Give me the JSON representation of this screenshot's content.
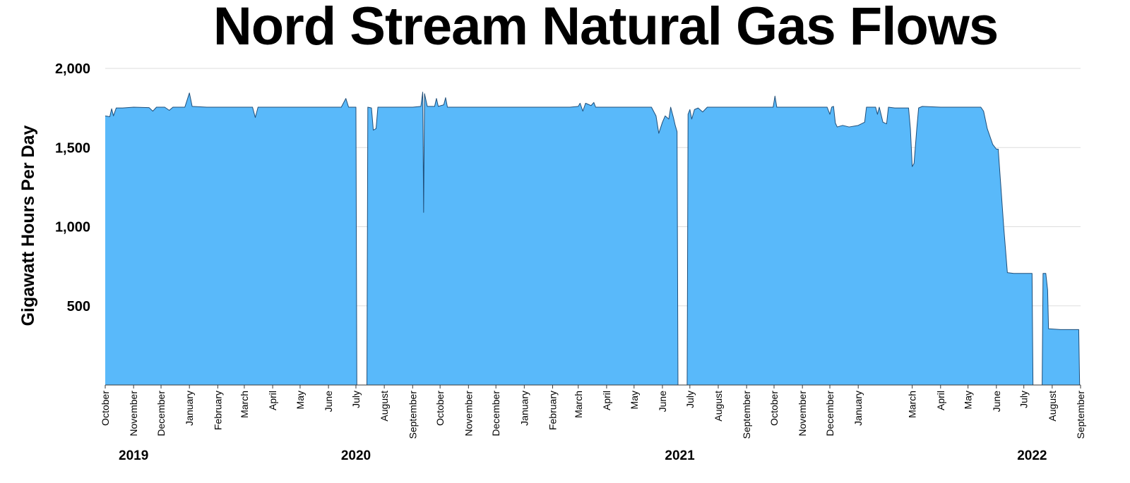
{
  "chart_data": {
    "type": "area",
    "title": "Nord Stream Natural Gas Flows",
    "xlabel": "",
    "ylabel": "Gigawatt Hours Per Day",
    "ylim": [
      0,
      2000
    ],
    "yticks": [
      {
        "value": 500,
        "label": "500"
      },
      {
        "value": 1000,
        "label": "1,000"
      },
      {
        "value": 1500,
        "label": "1,500"
      },
      {
        "value": 2000,
        "label": "2,000"
      }
    ],
    "grid": true,
    "legend": "none",
    "colors": {
      "fill": "#59B9FA",
      "line": "#1F4E79",
      "grid": "#DDDDDD"
    },
    "month_ticks": [
      {
        "date": "2019-10-01",
        "label": "October"
      },
      {
        "date": "2019-11-01",
        "label": "November"
      },
      {
        "date": "2019-12-01",
        "label": "December"
      },
      {
        "date": "2020-01-01",
        "label": "January"
      },
      {
        "date": "2020-02-01",
        "label": "February"
      },
      {
        "date": "2020-03-01",
        "label": "March"
      },
      {
        "date": "2020-04-01",
        "label": "April"
      },
      {
        "date": "2020-05-01",
        "label": "May"
      },
      {
        "date": "2020-06-01",
        "label": "June"
      },
      {
        "date": "2020-07-01",
        "label": "July"
      },
      {
        "date": "2020-08-01",
        "label": "August"
      },
      {
        "date": "2020-09-01",
        "label": "September"
      },
      {
        "date": "2020-10-01",
        "label": "October"
      },
      {
        "date": "2020-11-01",
        "label": "November"
      },
      {
        "date": "2020-12-01",
        "label": "December"
      },
      {
        "date": "2021-01-01",
        "label": "January"
      },
      {
        "date": "2021-02-01",
        "label": "February"
      },
      {
        "date": "2021-03-01",
        "label": "March"
      },
      {
        "date": "2021-04-01",
        "label": "April"
      },
      {
        "date": "2021-05-01",
        "label": "May"
      },
      {
        "date": "2021-06-01",
        "label": "June"
      },
      {
        "date": "2021-07-01",
        "label": "July"
      },
      {
        "date": "2021-08-01",
        "label": "August"
      },
      {
        "date": "2021-09-01",
        "label": "September"
      },
      {
        "date": "2021-10-01",
        "label": "October"
      },
      {
        "date": "2021-11-01",
        "label": "November"
      },
      {
        "date": "2021-12-01",
        "label": "December"
      },
      {
        "date": "2022-01-01",
        "label": "January"
      },
      {
        "date": "2022-03-01",
        "label": "March"
      },
      {
        "date": "2022-04-01",
        "label": "April"
      },
      {
        "date": "2022-05-01",
        "label": "May"
      },
      {
        "date": "2022-06-01",
        "label": "June"
      },
      {
        "date": "2022-07-01",
        "label": "July"
      },
      {
        "date": "2022-08-01",
        "label": "August"
      },
      {
        "date": "2022-09-01",
        "label": "September"
      }
    ],
    "year_labels": [
      {
        "date": "2019-11-01",
        "label": "2019"
      },
      {
        "date": "2020-07-01",
        "label": "2020"
      },
      {
        "date": "2021-06-20",
        "label": "2021"
      },
      {
        "date": "2022-07-10",
        "label": "2022"
      }
    ],
    "series": [
      {
        "segments": [
          [
            [
              "2019-10-01",
              1700
            ],
            [
              "2019-10-06",
              1695
            ],
            [
              "2019-10-08",
              1745
            ],
            [
              "2019-10-10",
              1700
            ],
            [
              "2019-10-13",
              1750
            ],
            [
              "2019-10-20",
              1750
            ],
            [
              "2019-11-01",
              1755
            ],
            [
              "2019-11-18",
              1752
            ],
            [
              "2019-11-22",
              1730
            ],
            [
              "2019-11-26",
              1755
            ],
            [
              "2019-12-05",
              1755
            ],
            [
              "2019-12-10",
              1735
            ],
            [
              "2019-12-14",
              1755
            ],
            [
              "2019-12-27",
              1755
            ],
            [
              "2020-01-01",
              1845
            ],
            [
              "2020-01-04",
              1760
            ],
            [
              "2020-01-20",
              1755
            ],
            [
              "2020-02-01",
              1755
            ],
            [
              "2020-03-10",
              1755
            ],
            [
              "2020-03-13",
              1690
            ],
            [
              "2020-03-16",
              1755
            ],
            [
              "2020-05-01",
              1755
            ],
            [
              "2020-06-15",
              1755
            ],
            [
              "2020-06-20",
              1810
            ],
            [
              "2020-06-23",
              1755
            ],
            [
              "2020-07-01",
              1755
            ],
            [
              "2020-07-02",
              0
            ]
          ],
          [
            [
              "2020-07-13",
              0
            ],
            [
              "2020-07-14",
              1755
            ],
            [
              "2020-07-18",
              1750
            ],
            [
              "2020-07-20",
              1610
            ],
            [
              "2020-07-23",
              1620
            ],
            [
              "2020-07-25",
              1755
            ],
            [
              "2020-08-20",
              1755
            ],
            [
              "2020-09-01",
              1755
            ],
            [
              "2020-09-10",
              1760
            ],
            [
              "2020-09-12",
              1850
            ],
            [
              "2020-09-13",
              1090
            ],
            [
              "2020-09-14",
              1840
            ],
            [
              "2020-09-17",
              1760
            ],
            [
              "2020-09-25",
              1760
            ],
            [
              "2020-09-27",
              1810
            ],
            [
              "2020-09-29",
              1760
            ],
            [
              "2020-10-05",
              1770
            ],
            [
              "2020-10-07",
              1815
            ],
            [
              "2020-10-09",
              1755
            ],
            [
              "2020-12-01",
              1755
            ],
            [
              "2021-01-15",
              1755
            ],
            [
              "2021-02-20",
              1755
            ],
            [
              "2021-03-01",
              1760
            ],
            [
              "2021-03-03",
              1780
            ],
            [
              "2021-03-06",
              1730
            ],
            [
              "2021-03-09",
              1780
            ],
            [
              "2021-03-15",
              1765
            ],
            [
              "2021-03-18",
              1785
            ],
            [
              "2021-03-20",
              1755
            ],
            [
              "2021-04-01",
              1755
            ],
            [
              "2021-05-20",
              1755
            ],
            [
              "2021-05-25",
              1700
            ],
            [
              "2021-05-28",
              1590
            ],
            [
              "2021-06-01",
              1660
            ],
            [
              "2021-06-04",
              1700
            ],
            [
              "2021-06-08",
              1680
            ],
            [
              "2021-06-10",
              1755
            ],
            [
              "2021-06-13",
              1690
            ],
            [
              "2021-06-15",
              1640
            ],
            [
              "2021-06-17",
              1600
            ],
            [
              "2021-06-18",
              0
            ]
          ],
          [
            [
              "2021-06-28",
              0
            ],
            [
              "2021-06-29",
              1710
            ],
            [
              "2021-07-01",
              1740
            ],
            [
              "2021-07-03",
              1680
            ],
            [
              "2021-07-06",
              1740
            ],
            [
              "2021-07-10",
              1750
            ],
            [
              "2021-07-15",
              1725
            ],
            [
              "2021-07-20",
              1755
            ],
            [
              "2021-08-01",
              1755
            ],
            [
              "2021-09-01",
              1755
            ],
            [
              "2021-09-30",
              1755
            ],
            [
              "2021-10-02",
              1825
            ],
            [
              "2021-10-04",
              1755
            ],
            [
              "2021-11-01",
              1755
            ],
            [
              "2021-11-28",
              1755
            ],
            [
              "2021-12-01",
              1710
            ],
            [
              "2021-12-03",
              1755
            ],
            [
              "2021-12-05",
              1760
            ],
            [
              "2021-12-07",
              1655
            ],
            [
              "2021-12-09",
              1630
            ],
            [
              "2021-12-15",
              1640
            ],
            [
              "2021-12-22",
              1630
            ],
            [
              "2022-01-01",
              1640
            ],
            [
              "2022-01-08",
              1660
            ],
            [
              "2022-01-10",
              1755
            ],
            [
              "2022-01-20",
              1755
            ],
            [
              "2022-01-22",
              1710
            ],
            [
              "2022-01-24",
              1755
            ],
            [
              "2022-01-28",
              1660
            ],
            [
              "2022-02-01",
              1650
            ],
            [
              "2022-02-03",
              1755
            ],
            [
              "2022-02-10",
              1750
            ],
            [
              "2022-02-25",
              1750
            ],
            [
              "2022-02-27",
              1620
            ],
            [
              "2022-03-01",
              1380
            ],
            [
              "2022-03-03",
              1400
            ],
            [
              "2022-03-06",
              1620
            ],
            [
              "2022-03-08",
              1750
            ],
            [
              "2022-03-12",
              1760
            ],
            [
              "2022-04-01",
              1755
            ],
            [
              "2022-05-15",
              1755
            ],
            [
              "2022-05-18",
              1730
            ],
            [
              "2022-05-22",
              1620
            ],
            [
              "2022-05-25",
              1570
            ],
            [
              "2022-05-28",
              1520
            ],
            [
              "2022-06-01",
              1490
            ],
            [
              "2022-06-03",
              1490
            ],
            [
              "2022-06-09",
              1000
            ],
            [
              "2022-06-13",
              710
            ],
            [
              "2022-06-20",
              705
            ],
            [
              "2022-07-01",
              705
            ],
            [
              "2022-07-10",
              705
            ],
            [
              "2022-07-11",
              0
            ]
          ],
          [
            [
              "2022-07-21",
              0
            ],
            [
              "2022-07-22",
              705
            ],
            [
              "2022-07-25",
              705
            ],
            [
              "2022-07-27",
              600
            ],
            [
              "2022-07-28",
              355
            ],
            [
              "2022-08-10",
              350
            ],
            [
              "2022-08-25",
              350
            ],
            [
              "2022-08-30",
              350
            ],
            [
              "2022-08-31",
              0
            ]
          ]
        ]
      }
    ]
  }
}
